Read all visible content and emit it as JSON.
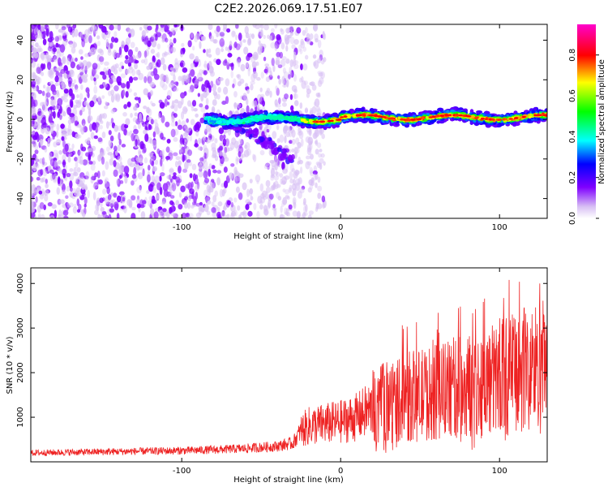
{
  "title": "C2E2.2026.069.17.51.E07",
  "chart_data": [
    {
      "type": "heatmap",
      "title": "C2E2.2026.069.17.51.E07",
      "xlabel": "Height of straight line (km)",
      "ylabel": "Frequency (Hz)",
      "xlim": [
        -195,
        130
      ],
      "ylim": [
        -50,
        48
      ],
      "xticks": [
        -100,
        0,
        100
      ],
      "yticks": [
        -40,
        -20,
        0,
        20,
        40
      ],
      "colorbar": {
        "label": "Normalized spectral amplitude",
        "range": [
          0.0,
          0.95
        ],
        "ticks": [
          0.0,
          0.2,
          0.4,
          0.6,
          0.8
        ]
      },
      "features": [
        {
          "name": "noise-field",
          "x_range": [
            -195,
            -25
          ],
          "y_range": [
            -50,
            48
          ],
          "amplitude": 0.1
        },
        {
          "name": "signal-line",
          "x_range": [
            -85,
            130
          ],
          "frequency_hz": 0,
          "peak_amplitude": 0.9
        },
        {
          "name": "descending-branch",
          "x_start": -70,
          "x_end": -30,
          "freq_start": 0,
          "freq_end": -20,
          "amplitude": 0.15
        }
      ]
    },
    {
      "type": "line",
      "title": "",
      "xlabel": "Height of straight line (km)",
      "ylabel": "SNR (10 * v/v)",
      "xlim": [
        -195,
        130
      ],
      "ylim": [
        0,
        4350
      ],
      "xticks": [
        -100,
        0,
        100
      ],
      "yticks": [
        1000,
        2000,
        3000,
        4000
      ],
      "series": [
        {
          "name": "SNR",
          "color": "#ee2222",
          "x": [
            -195,
            -180,
            -160,
            -140,
            -120,
            -100,
            -80,
            -60,
            -40,
            -30,
            -25,
            -20,
            -10,
            0,
            10,
            20,
            30,
            40,
            50,
            60,
            70,
            80,
            90,
            100,
            110,
            120,
            130
          ],
          "values": [
            200,
            210,
            220,
            230,
            240,
            250,
            270,
            300,
            350,
            420,
            700,
            800,
            850,
            900,
            1000,
            1200,
            1350,
            1450,
            1500,
            1550,
            1650,
            1700,
            1750,
            1900,
            2000,
            2100,
            2200
          ]
        }
      ]
    }
  ]
}
